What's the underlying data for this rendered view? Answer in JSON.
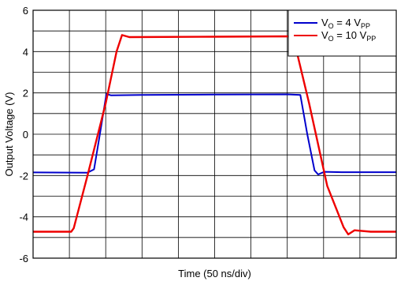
{
  "chart_data": {
    "type": "line",
    "xlabel": "Time (50 ns/div)",
    "ylabel": "Output Voltage (V)",
    "xlim": [
      0,
      10
    ],
    "ylim": [
      -6,
      6
    ],
    "yticks": [
      "-6",
      "-4",
      "-2",
      "0",
      "2",
      "4",
      "6"
    ],
    "x_divisions": 10,
    "grid": true,
    "legend_position": "top-right",
    "series": [
      {
        "name_main": "V",
        "name_sub1": "O",
        "name_mid": " = 4 V",
        "name_sub2": "PP",
        "color": "#0000cc",
        "points": [
          [
            0,
            -1.85
          ],
          [
            1.5,
            -1.86
          ],
          [
            1.68,
            -1.7
          ],
          [
            1.84,
            0
          ],
          [
            2.02,
            1.95
          ],
          [
            2.15,
            1.88
          ],
          [
            3.0,
            1.9
          ],
          [
            5.0,
            1.92
          ],
          [
            7.0,
            1.93
          ],
          [
            7.36,
            1.9
          ],
          [
            7.55,
            0
          ],
          [
            7.75,
            -1.75
          ],
          [
            7.85,
            -1.95
          ],
          [
            8.02,
            -1.82
          ],
          [
            8.5,
            -1.84
          ],
          [
            10,
            -1.84
          ]
        ]
      },
      {
        "name_main": "V",
        "name_sub1": "O",
        "name_mid": " = 10 V",
        "name_sub2": "PP",
        "color": "#ee0000",
        "points": [
          [
            0,
            -4.72
          ],
          [
            1.05,
            -4.72
          ],
          [
            1.12,
            -4.55
          ],
          [
            1.5,
            -2.0
          ],
          [
            2.0,
            1.5
          ],
          [
            2.3,
            4.0
          ],
          [
            2.45,
            4.8
          ],
          [
            2.65,
            4.7
          ],
          [
            5.0,
            4.72
          ],
          [
            7.1,
            4.74
          ],
          [
            7.22,
            4.3
          ],
          [
            7.6,
            1.5
          ],
          [
            8.1,
            -2.5
          ],
          [
            8.55,
            -4.5
          ],
          [
            8.68,
            -4.85
          ],
          [
            8.85,
            -4.65
          ],
          [
            9.3,
            -4.72
          ],
          [
            10,
            -4.72
          ]
        ]
      }
    ]
  }
}
